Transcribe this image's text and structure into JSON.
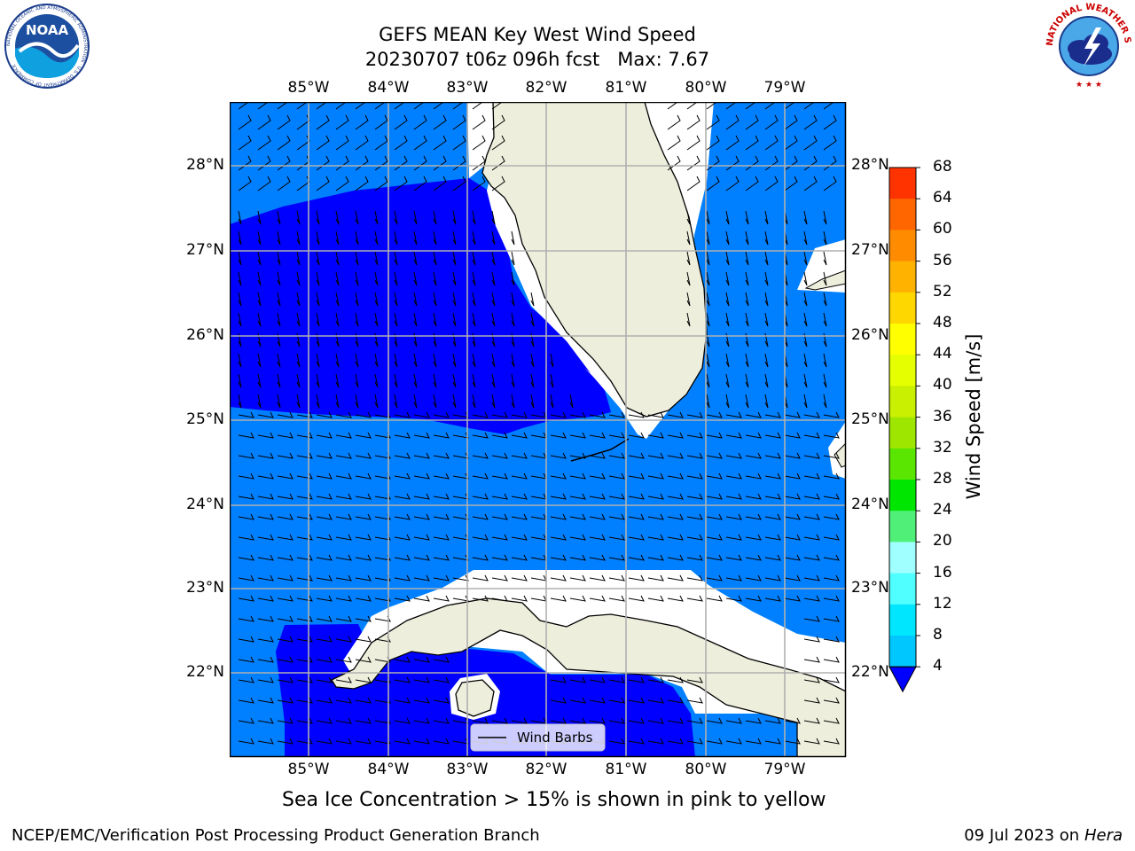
{
  "title": {
    "line1": "GEFS MEAN Key West Wind Speed",
    "line2": "20230707 t06z 096h fcst   Max: 7.67"
  },
  "logos": {
    "left": "NOAA",
    "left_ring": "NATIONAL OCEANIC AND ATMOSPHERIC ADMINISTRATION · U.S. DEPARTMENT OF COMMERCE",
    "right_ring": "NATIONAL WEATHER SERVICE"
  },
  "map": {
    "lon_labels": [
      "85°W",
      "84°W",
      "83°W",
      "82°W",
      "81°W",
      "80°W",
      "79°W"
    ],
    "lat_labels": [
      "28°N",
      "27°N",
      "26°N",
      "25°N",
      "24°N",
      "23°N",
      "22°N"
    ],
    "legend_label": "Wind Barbs"
  },
  "colorbar": {
    "label": "Wind Speed [m/s]",
    "ticks": [
      "68",
      "64",
      "60",
      "56",
      "52",
      "48",
      "44",
      "40",
      "36",
      "32",
      "28",
      "24",
      "20",
      "16",
      "12",
      "8",
      "4"
    ],
    "colors": [
      "#ff0000",
      "#ff3300",
      "#ff6600",
      "#ff8c00",
      "#ffb300",
      "#ffd700",
      "#ffff00",
      "#e6ff00",
      "#c8f000",
      "#9ee600",
      "#5ae600",
      "#00e600",
      "#50f078",
      "#a0ffff",
      "#50ffff",
      "#00e6ff",
      "#00c8ff",
      "#0080ff",
      "#0000ff"
    ]
  },
  "caption": "Sea Ice Concentration > 15% is shown in pink to yellow",
  "footer": {
    "left": "NCEP/EMC/Verification Post Processing Product Generation Branch",
    "right_prefix": "09 Jul 2023 on ",
    "right_host": "Hera"
  }
}
